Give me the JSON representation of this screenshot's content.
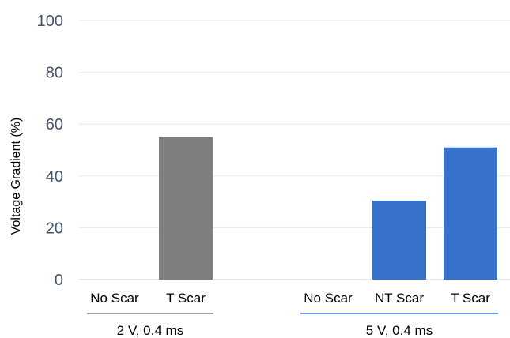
{
  "chart_data": {
    "type": "bar",
    "ylabel": "Voltage Gradient (%)",
    "ylim": [
      0,
      100
    ],
    "yticks": [
      0,
      20,
      40,
      60,
      80,
      100
    ],
    "grid": true,
    "groups": [
      {
        "label": "2 V, 0.4 ms",
        "color": "#7f7f7f",
        "bars": [
          {
            "category": "No Scar",
            "value": 0
          },
          {
            "category": "T Scar",
            "value": 55
          }
        ]
      },
      {
        "label": "5 V, 0.4 ms",
        "color": "#3773cc",
        "bars": [
          {
            "category": "No Scar",
            "value": 0
          },
          {
            "category": "NT Scar",
            "value": 30.5
          },
          {
            "category": "T Scar",
            "value": 51
          }
        ]
      }
    ]
  }
}
